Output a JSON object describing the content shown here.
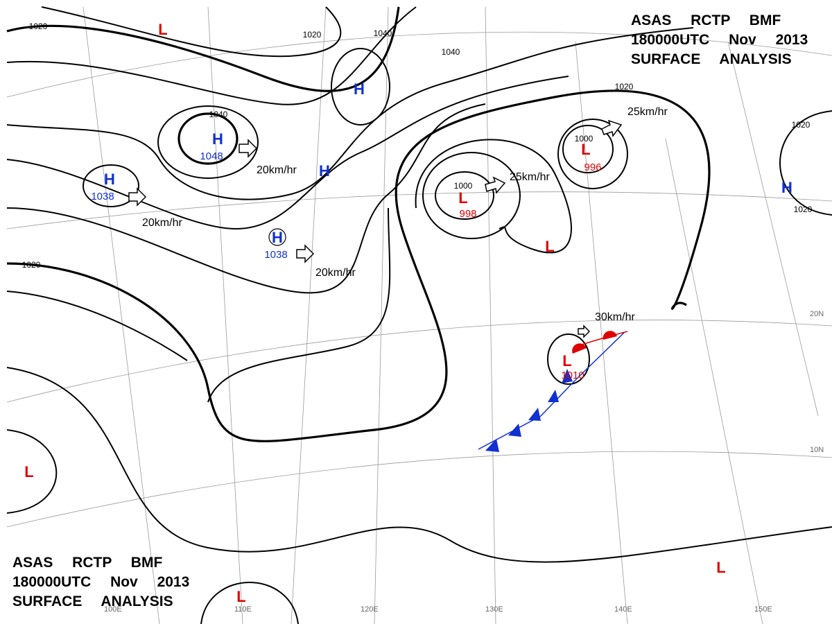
{
  "header": {
    "lines": [
      "ASAS RCTP BMF",
      "180000UTC Nov 2013",
      "SURFACE ANALYSIS"
    ]
  },
  "footer": {
    "lines": [
      "ASAS RCTP BMF",
      "180000UTC Nov 2013",
      "SURFACE ANALYSIS"
    ]
  },
  "systems": [
    {
      "symbol": "L"
    },
    {
      "symbol": "H"
    },
    {
      "symbol": "H",
      "pressure": "1048"
    },
    {
      "symbol": "H",
      "pressure": "1038"
    },
    {
      "symbol": "H"
    },
    {
      "symbol": "H",
      "pressure": "1038"
    },
    {
      "symbol": "L",
      "pressure": "998"
    },
    {
      "symbol": "L",
      "pressure": "996"
    },
    {
      "symbol": "L"
    },
    {
      "symbol": "H"
    },
    {
      "symbol": "L",
      "pressure": "1010"
    },
    {
      "symbol": "L"
    },
    {
      "symbol": "L"
    },
    {
      "symbol": "L"
    }
  ],
  "isobar_labels": [
    "1020",
    "1020",
    "1040",
    "1040",
    "1040",
    "1020",
    "1020",
    "1020",
    "1020",
    "1000",
    "1000"
  ],
  "motion_labels": [
    "20km/hr",
    "20km/hr",
    "20km/hr",
    "25km/hr",
    "25km/hr",
    "30km/hr"
  ],
  "graticule_labels": [
    "20N",
    "10N",
    "100E",
    "110E",
    "120E",
    "130E",
    "140E",
    "150E"
  ]
}
